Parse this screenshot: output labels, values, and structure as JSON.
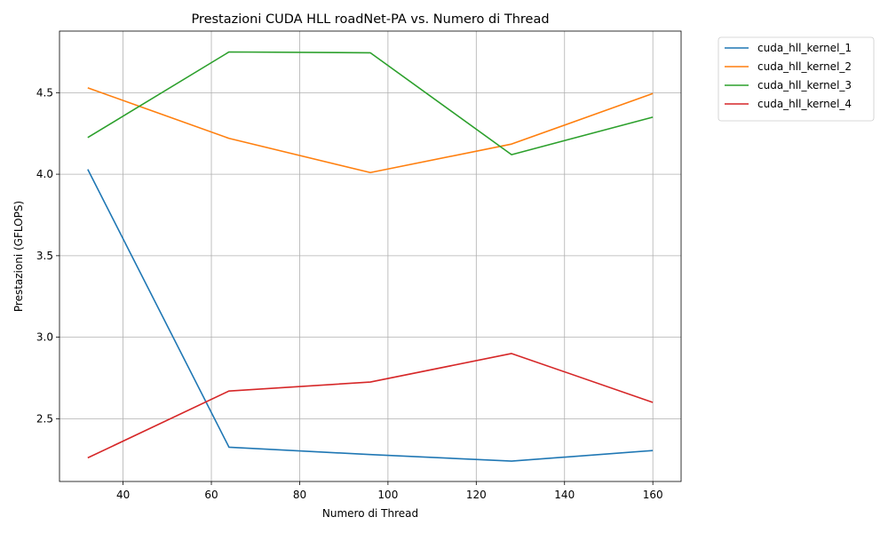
{
  "chart_data": {
    "type": "line",
    "title": "Prestazioni CUDA HLL roadNet-PA vs. Numero di Thread",
    "xlabel": "Numero di Thread",
    "ylabel": "Prestazioni (GFLOPS)",
    "x": [
      32,
      64,
      96,
      128,
      160
    ],
    "xlim": [
      25.6,
      166.4
    ],
    "ylim": [
      2.115,
      4.878
    ],
    "xticks": [
      40,
      60,
      80,
      100,
      120,
      140,
      160
    ],
    "yticks": [
      2.5,
      3.0,
      3.5,
      4.0,
      4.5
    ],
    "ytick_labels": [
      "2.5",
      "3.0",
      "3.5",
      "4.0",
      "4.5"
    ],
    "grid": true,
    "legend_position": "outside-top-right",
    "series": [
      {
        "name": "cuda_hll_kernel_1",
        "color": "#1f77b4",
        "values": [
          4.03,
          2.325,
          2.28,
          2.24,
          2.305
        ]
      },
      {
        "name": "cuda_hll_kernel_2",
        "color": "#ff7f0e",
        "values": [
          4.53,
          4.22,
          4.01,
          4.185,
          4.495
        ]
      },
      {
        "name": "cuda_hll_kernel_3",
        "color": "#2ca02c",
        "values": [
          4.225,
          4.75,
          4.745,
          4.12,
          4.35
        ]
      },
      {
        "name": "cuda_hll_kernel_4",
        "color": "#d62728",
        "values": [
          2.26,
          2.67,
          2.725,
          2.9,
          2.6
        ]
      }
    ]
  }
}
